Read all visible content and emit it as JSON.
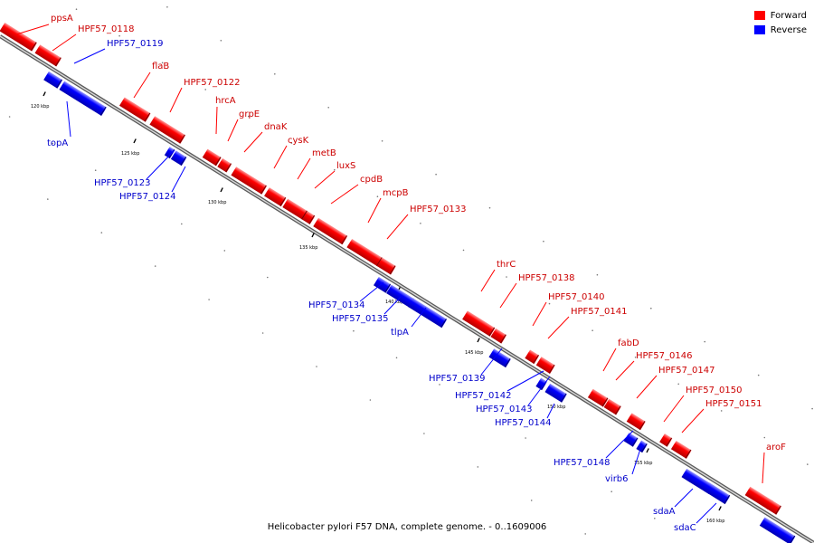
{
  "caption": "Helicobacter pylori F57 DNA, complete genome. - 0..1609006",
  "colors": {
    "forward": "#ff0000",
    "reverse": "#0000ff",
    "forward_label": "#cc0000",
    "reverse_label": "#0000cc",
    "axis": "#8a8a8a"
  },
  "legend": [
    {
      "label": "Forward",
      "color": "#ff0000"
    },
    {
      "label": "Reverse",
      "color": "#0000ff"
    }
  ],
  "scale_ticks": [
    "120 kbp",
    "125 kbp",
    "130 kbp",
    "135 kbp",
    "140 kbp",
    "145 kbp",
    "150 kbp",
    "155 kbp",
    "160 kbp"
  ],
  "genes": [
    {
      "label": "ppsA",
      "strand": "forward"
    },
    {
      "label": "HPF57_0118",
      "strand": "forward"
    },
    {
      "label": "HPF57_0119",
      "strand": "reverse"
    },
    {
      "label": "topA",
      "strand": "reverse"
    },
    {
      "label": "flaB",
      "strand": "forward"
    },
    {
      "label": "HPF57_0122",
      "strand": "forward"
    },
    {
      "label": "HPF57_0123",
      "strand": "reverse"
    },
    {
      "label": "HPF57_0124",
      "strand": "reverse"
    },
    {
      "label": "hrcA",
      "strand": "forward"
    },
    {
      "label": "grpE",
      "strand": "forward"
    },
    {
      "label": "dnaK",
      "strand": "forward"
    },
    {
      "label": "cysK",
      "strand": "forward"
    },
    {
      "label": "metB",
      "strand": "forward"
    },
    {
      "label": "luxS",
      "strand": "forward"
    },
    {
      "label": "cpdB",
      "strand": "forward"
    },
    {
      "label": "mcpB",
      "strand": "forward"
    },
    {
      "label": "HPF57_0133",
      "strand": "forward"
    },
    {
      "label": "HPF57_0134",
      "strand": "reverse"
    },
    {
      "label": "HPF57_0135",
      "strand": "reverse"
    },
    {
      "label": "tlpA",
      "strand": "reverse"
    },
    {
      "label": "thrC",
      "strand": "forward"
    },
    {
      "label": "HPF57_0138",
      "strand": "forward"
    },
    {
      "label": "HPF57_0139",
      "strand": "reverse"
    },
    {
      "label": "HPF57_0140",
      "strand": "forward"
    },
    {
      "label": "HPF57_0141",
      "strand": "forward"
    },
    {
      "label": "HPF57_0142",
      "strand": "reverse"
    },
    {
      "label": "HPF57_0143",
      "strand": "reverse"
    },
    {
      "label": "HPF57_0144",
      "strand": "reverse"
    },
    {
      "label": "fabD",
      "strand": "forward"
    },
    {
      "label": "HPF57_0146",
      "strand": "forward"
    },
    {
      "label": "HPF57_0147",
      "strand": "forward"
    },
    {
      "label": "HPF57_0148",
      "strand": "reverse"
    },
    {
      "label": "virb6",
      "strand": "reverse"
    },
    {
      "label": "HPF57_0150",
      "strand": "forward"
    },
    {
      "label": "HPF57_0151",
      "strand": "forward"
    },
    {
      "label": "sdaA",
      "strand": "reverse"
    },
    {
      "label": "sdaC",
      "strand": "reverse"
    },
    {
      "label": "aroF",
      "strand": "forward"
    }
  ]
}
